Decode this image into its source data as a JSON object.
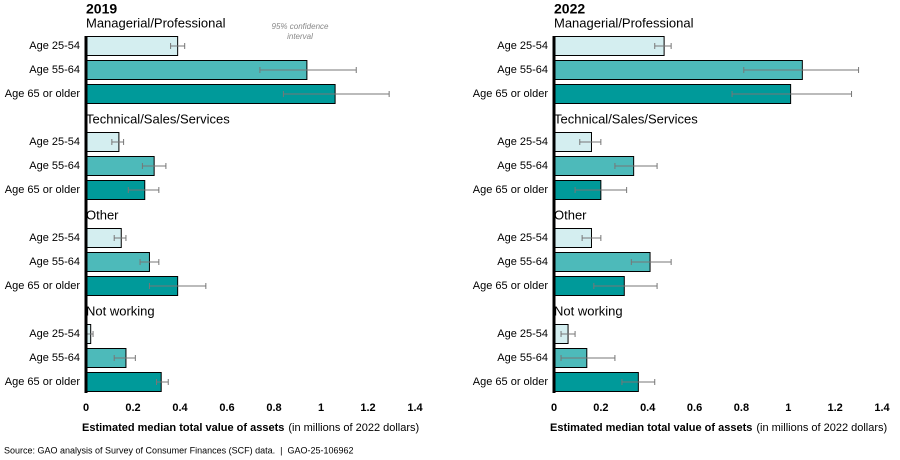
{
  "chart_data": [
    {
      "type": "bar",
      "orientation": "horizontal",
      "title": "2019",
      "annotation": "95% confidence interval",
      "categories": [
        "Age 25-54",
        "Age 55-64",
        "Age 65 or older"
      ],
      "colors": [
        "#d4eef0",
        "#4dbaba",
        "#009a9a"
      ],
      "series": [
        {
          "name": "Managerial/Professional",
          "values": [
            0.39,
            0.94,
            1.06
          ],
          "ci_low": [
            0.36,
            0.74,
            0.84
          ],
          "ci_high": [
            0.42,
            1.15,
            1.29
          ]
        },
        {
          "name": "Technical/Sales/Services",
          "values": [
            0.14,
            0.29,
            0.25
          ],
          "ci_low": [
            0.11,
            0.24,
            0.18
          ],
          "ci_high": [
            0.16,
            0.34,
            0.31
          ]
        },
        {
          "name": "Other",
          "values": [
            0.15,
            0.27,
            0.39
          ],
          "ci_low": [
            0.12,
            0.23,
            0.27
          ],
          "ci_high": [
            0.17,
            0.31,
            0.51
          ]
        },
        {
          "name": "Not working",
          "values": [
            0.02,
            0.17,
            0.32
          ],
          "ci_low": [
            0.0,
            0.12,
            0.3
          ],
          "ci_high": [
            0.03,
            0.21,
            0.35
          ]
        }
      ],
      "xlim": [
        0,
        1.4
      ],
      "xticks": [
        0,
        0.2,
        0.4,
        0.6,
        0.8,
        1.0,
        1.2,
        1.4
      ],
      "xlabel": "Estimated median total value of assets",
      "xlabel_note": "(in millions of 2022 dollars)"
    },
    {
      "type": "bar",
      "orientation": "horizontal",
      "title": "2022",
      "categories": [
        "Age 25-54",
        "Age 55-64",
        "Age 65 or older"
      ],
      "colors": [
        "#d4eef0",
        "#4dbaba",
        "#009a9a"
      ],
      "series": [
        {
          "name": "Managerial/Professional",
          "values": [
            0.47,
            1.06,
            1.01
          ],
          "ci_low": [
            0.43,
            0.81,
            0.76
          ],
          "ci_high": [
            0.5,
            1.3,
            1.27
          ]
        },
        {
          "name": "Technical/Sales/Services",
          "values": [
            0.16,
            0.34,
            0.2
          ],
          "ci_low": [
            0.11,
            0.26,
            0.09
          ],
          "ci_high": [
            0.2,
            0.44,
            0.31
          ]
        },
        {
          "name": "Other",
          "values": [
            0.16,
            0.41,
            0.3
          ],
          "ci_low": [
            0.12,
            0.33,
            0.17
          ],
          "ci_high": [
            0.2,
            0.5,
            0.44
          ]
        },
        {
          "name": "Not working",
          "values": [
            0.06,
            0.14,
            0.36
          ],
          "ci_low": [
            0.03,
            0.03,
            0.29
          ],
          "ci_high": [
            0.09,
            0.26,
            0.43
          ]
        }
      ],
      "xlim": [
        0,
        1.4
      ],
      "xticks": [
        0,
        0.2,
        0.4,
        0.6,
        0.8,
        1.0,
        1.2,
        1.4
      ],
      "xlabel": "Estimated median total value of assets",
      "xlabel_note": "(in millions of 2022 dollars)"
    }
  ],
  "footer": "Source: GAO analysis of Survey of Consumer Finances (SCF) data.  |  GAO-25-106962"
}
